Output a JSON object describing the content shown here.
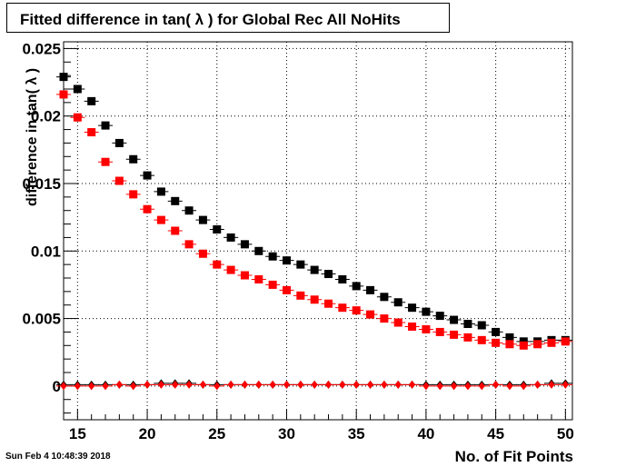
{
  "chart_data": {
    "type": "scatter",
    "title": "Fitted difference in tan( λ ) for Global Rec All NoHits",
    "xlabel": "No. of Fit Points",
    "ylabel": "difference in tan( λ )",
    "xlim": [
      14,
      50.5
    ],
    "ylim": [
      -0.0025,
      0.0255
    ],
    "x_ticks": [
      15,
      20,
      25,
      30,
      35,
      40,
      45,
      50
    ],
    "y_ticks": [
      0,
      0.005,
      0.01,
      0.015,
      0.02,
      0.025
    ],
    "y_tick_labels": [
      "0",
      "0.005",
      "0.01",
      "0.015",
      "0.02",
      "0.025"
    ],
    "grid": true,
    "legend": "none",
    "x": [
      14,
      15,
      16,
      17,
      18,
      19,
      20,
      21,
      22,
      23,
      24,
      25,
      26,
      27,
      28,
      29,
      30,
      31,
      32,
      33,
      34,
      35,
      36,
      37,
      38,
      39,
      40,
      41,
      42,
      43,
      44,
      45,
      46,
      47,
      48,
      49,
      50
    ],
    "series": [
      {
        "color": "#000000",
        "marker": "square",
        "values": [
          0.0229,
          0.022,
          0.0211,
          0.0193,
          0.018,
          0.0168,
          0.0156,
          0.0144,
          0.0137,
          0.013,
          0.0123,
          0.0116,
          0.011,
          0.0105,
          0.01,
          0.0096,
          0.0093,
          0.009,
          0.0086,
          0.0083,
          0.0079,
          0.0074,
          0.0071,
          0.0066,
          0.0062,
          0.0058,
          0.0055,
          0.0052,
          0.0049,
          0.0046,
          0.0045,
          0.004,
          0.0036,
          0.0033,
          0.0033,
          0.0034,
          0.0034
        ]
      },
      {
        "color": "#ff0000",
        "marker": "square",
        "values": [
          0.0216,
          0.0199,
          0.0188,
          0.0166,
          0.0152,
          0.0142,
          0.0131,
          0.0123,
          0.0115,
          0.0105,
          0.0098,
          0.009,
          0.0086,
          0.0082,
          0.0079,
          0.0075,
          0.0071,
          0.0067,
          0.0064,
          0.0061,
          0.0058,
          0.0056,
          0.0053,
          0.005,
          0.0047,
          0.0044,
          0.0042,
          0.004,
          0.0038,
          0.0036,
          0.0034,
          0.0032,
          0.0031,
          0.003,
          0.0031,
          0.0032,
          0.0033
        ]
      },
      {
        "color": "#000000",
        "marker": "diamond",
        "values": [
          0.0001,
          0.0001,
          0.0001,
          0.0001,
          0.0001,
          0.0001,
          0.0001,
          0.0002,
          0.0002,
          0.0002,
          0.0001,
          0.0001,
          0.0001,
          0.0001,
          0.0001,
          0.0001,
          0.0001,
          0.0001,
          0.0001,
          0.0001,
          0.0001,
          0.0001,
          0.0001,
          0.0001,
          0.0001,
          0.0001,
          0.0001,
          0.0001,
          0.0001,
          0.0001,
          0.0001,
          0.0001,
          0.0001,
          0.0001,
          0.0001,
          0.0002,
          0.0002
        ]
      },
      {
        "color": "#ff0000",
        "marker": "diamond",
        "values": [
          0.0,
          0.0,
          0.0,
          0.0,
          0.0001,
          0.0,
          0.0001,
          0.0001,
          0.0001,
          0.0001,
          0.0001,
          0.0,
          0.0001,
          0.0001,
          0.0001,
          0.0001,
          0.0001,
          0.0001,
          0.0001,
          0.0001,
          0.0001,
          0.0001,
          0.0001,
          0.0001,
          0.0001,
          0.0001,
          0.0,
          0.0,
          0.0,
          0.0,
          0.0,
          0.0001,
          0.0,
          0.0,
          0.0001,
          0.0001,
          0.0001
        ]
      }
    ]
  },
  "timestamp": "Sun Feb  4 10:48:39 2018"
}
